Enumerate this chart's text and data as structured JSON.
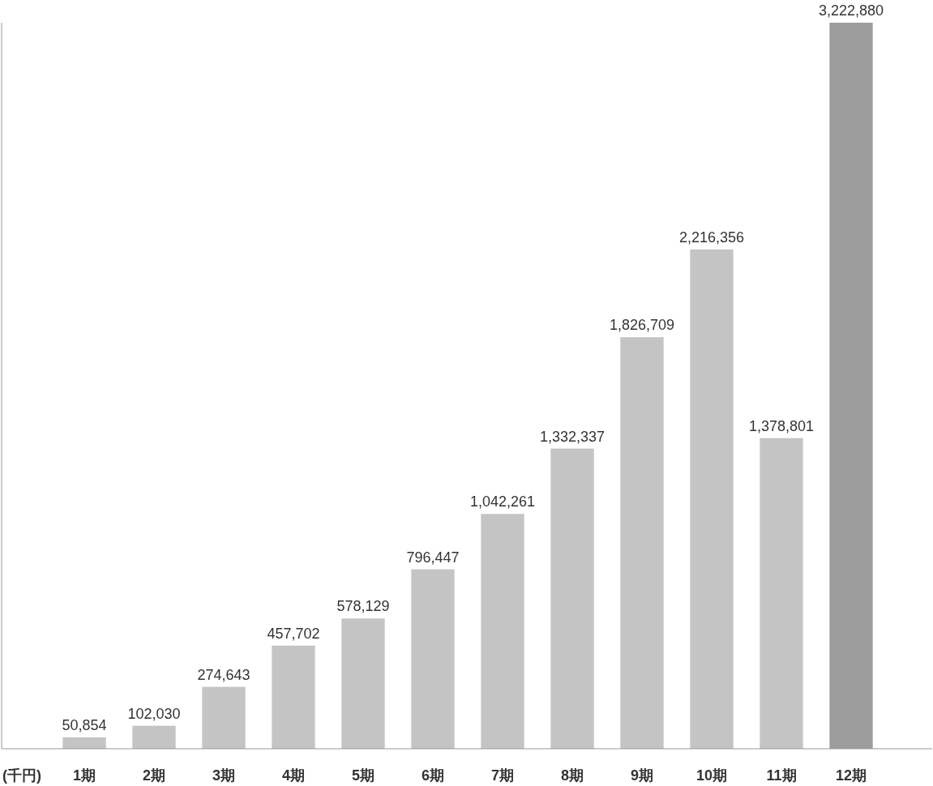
{
  "chart_data": {
    "type": "bar",
    "annotations": [
      "(千円)"
    ],
    "categories": [
      "1期",
      "2期",
      "3期",
      "4期",
      "5期",
      "6期",
      "7期",
      "8期",
      "9期",
      "10期",
      "11期",
      "12期"
    ],
    "values": [
      50854,
      102030,
      274643,
      457702,
      578129,
      796447,
      1042261,
      1332337,
      1826709,
      2216356,
      1378801,
      3222880
    ],
    "value_labels": [
      "50,854",
      "102,030",
      "274,643",
      "457,702",
      "578,129",
      "796,447",
      "1,042,261",
      "1,332,337",
      "1,826,709",
      "2,216,356",
      "1,378,801",
      "3,222,880"
    ],
    "colors": [
      "#c4c4c4",
      "#c4c4c4",
      "#c4c4c4",
      "#c4c4c4",
      "#c4c4c4",
      "#c4c4c4",
      "#c4c4c4",
      "#c4c4c4",
      "#c4c4c4",
      "#c4c4c4",
      "#c4c4c4",
      "#9c9c9c"
    ]
  }
}
